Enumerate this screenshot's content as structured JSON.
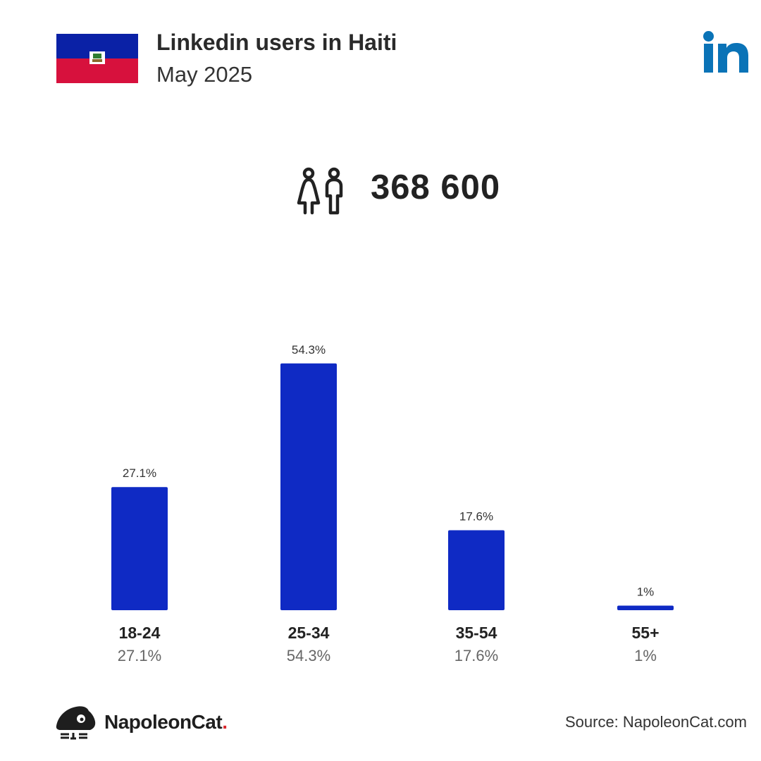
{
  "header": {
    "title": "Linkedin users in Haiti",
    "subtitle": "May 2025"
  },
  "summary": {
    "total_users": "368 600",
    "icon": "users-icon"
  },
  "icons": {
    "flag": "haiti-flag-icon",
    "platform": "linkedin-logo",
    "brand": "napoleoncat-logo"
  },
  "colors": {
    "bar": "#0f2ac4",
    "flag_blue": "#0a21a6",
    "flag_red": "#d7113d",
    "linkedin": "#0a73b7",
    "brand_dot": "#d9262c"
  },
  "chart_data": {
    "type": "bar",
    "categories": [
      "18-24",
      "25-34",
      "35-54",
      "55+"
    ],
    "values": [
      27.1,
      54.3,
      17.6,
      1
    ],
    "data_labels": [
      "27.1%",
      "54.3%",
      "17.6%",
      "1%"
    ],
    "grid": false
  },
  "footer": {
    "brand_name": "NapoleonCat",
    "brand_dot": ".",
    "source": "Source: NapoleonCat.com"
  }
}
